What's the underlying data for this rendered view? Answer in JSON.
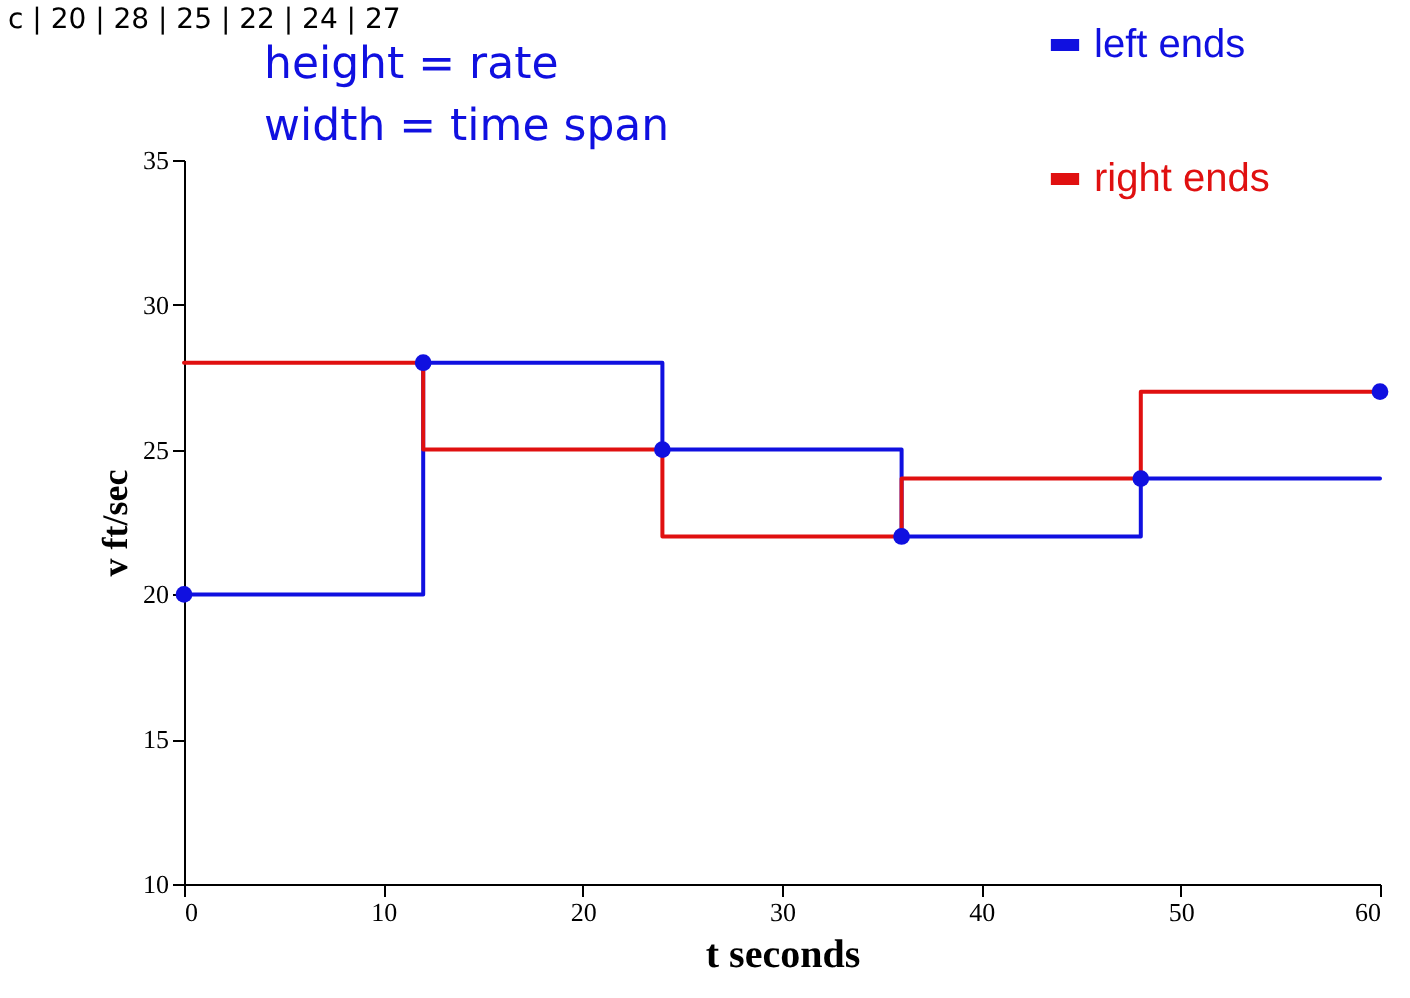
{
  "chart_data": {
    "type": "step",
    "xlabel": "t seconds",
    "ylabel": "v ft/sec",
    "x": [
      0,
      12,
      24,
      36,
      48,
      60
    ],
    "series": [
      {
        "name": "left ends",
        "color": "#1010e0",
        "values": [
          20,
          28,
          25,
          22,
          24,
          24
        ]
      },
      {
        "name": "right ends",
        "color": "#e01010",
        "values": [
          28,
          25,
          22,
          24,
          27,
          27
        ]
      },
      {
        "type": "scatter",
        "color": "#1010e0",
        "marker": "circle",
        "values": [
          20,
          28,
          25,
          22,
          24,
          27
        ]
      }
    ],
    "xlim": [
      0,
      60
    ],
    "xticks": [
      0,
      10,
      20,
      30,
      40,
      50,
      60
    ],
    "ylim": [
      10,
      35
    ],
    "yticks": [
      10,
      15,
      20,
      25,
      30,
      35
    ],
    "grid": false,
    "legend": "top right",
    "annotations": [
      "c | 20 | 28 | 25 | 22 | 24 | 27",
      "height = rate",
      "width = time span"
    ]
  }
}
